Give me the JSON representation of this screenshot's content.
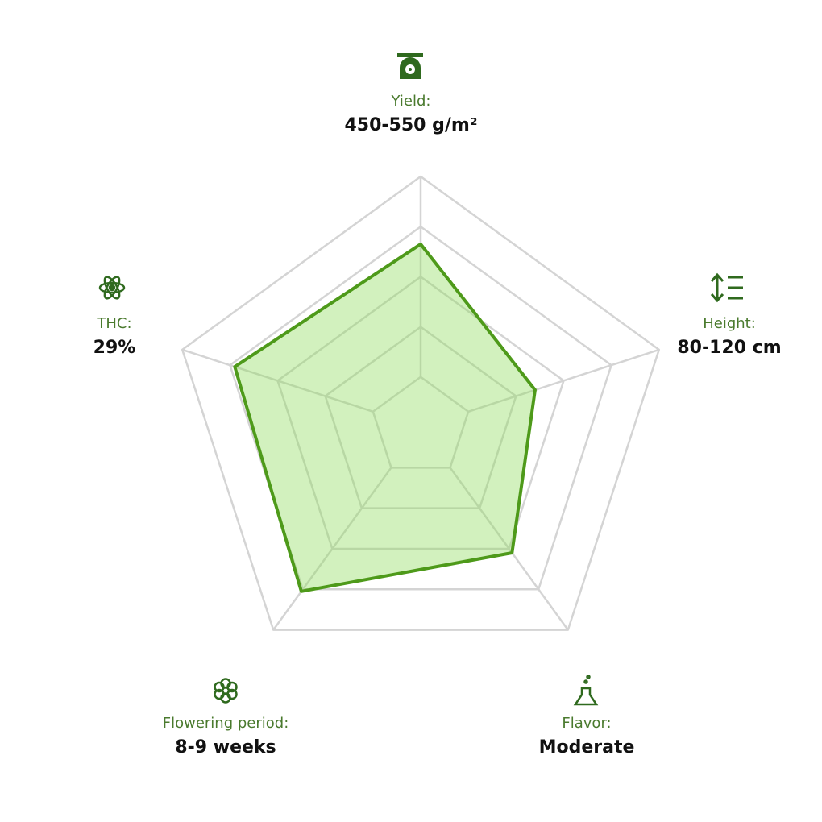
{
  "chart_data": {
    "type": "radar",
    "categories": [
      "Yield:",
      "Height:",
      "Flavor:",
      "Flowering period:",
      "THC:"
    ],
    "category_values": [
      "450-550 g/m²",
      "80-120 cm",
      "Moderate",
      "8-9 weeks",
      "29%"
    ],
    "values": [
      3.65,
      2.4,
      3.1,
      4.05,
      3.9
    ],
    "color": "#4e9a1a",
    "ylim": [
      0,
      5
    ],
    "yticks": [
      1,
      2,
      3,
      4,
      5
    ],
    "grid": true
  }
}
